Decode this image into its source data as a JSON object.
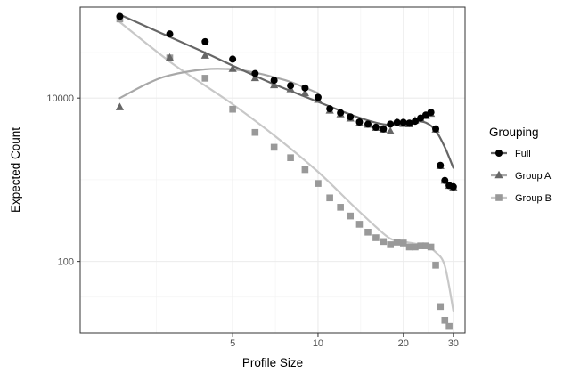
{
  "chart_data": {
    "type": "scatter",
    "title": "",
    "xlabel": "Profile Size",
    "ylabel": "Expected Count",
    "x_scale": "log",
    "y_scale": "log",
    "xlim": [
      1.45,
      33
    ],
    "ylim": [
      13.3,
      130000
    ],
    "x_ticks": [
      5,
      10,
      20,
      30
    ],
    "x_tick_labels": [
      "5",
      "10",
      "20",
      "30"
    ],
    "y_ticks": [
      100,
      10000
    ],
    "y_tick_labels": [
      "100",
      "10000"
    ],
    "grid": true,
    "legend": {
      "title": "Grouping",
      "position": "right",
      "entries": [
        "Full",
        "Group A",
        "Group B"
      ]
    },
    "series": [
      {
        "name": "Full",
        "marker": "circle",
        "color": "#000000",
        "line_color": "#666666",
        "points": [
          [
            2,
            100000
          ],
          [
            3,
            61000
          ],
          [
            4,
            49000
          ],
          [
            5,
            30000
          ],
          [
            6,
            20000
          ],
          [
            7,
            16500
          ],
          [
            8,
            14200
          ],
          [
            9,
            13300
          ],
          [
            10,
            10200
          ],
          [
            11,
            7400
          ],
          [
            12,
            6600
          ],
          [
            13,
            5900
          ],
          [
            14,
            5100
          ],
          [
            15,
            4800
          ],
          [
            16,
            4400
          ],
          [
            17,
            4200
          ],
          [
            18,
            4800
          ],
          [
            19,
            5050
          ],
          [
            20,
            5050
          ],
          [
            21,
            4950
          ],
          [
            22,
            5200
          ],
          [
            23,
            5700
          ],
          [
            24,
            6200
          ],
          [
            25,
            6700
          ],
          [
            26,
            4200
          ],
          [
            27,
            1500
          ],
          [
            28,
            980
          ],
          [
            29,
            850
          ],
          [
            30,
            820
          ]
        ],
        "fit": [
          [
            2,
            105000
          ],
          [
            3,
            56000
          ],
          [
            4,
            36000
          ],
          [
            5,
            25000
          ],
          [
            7,
            14800
          ],
          [
            10,
            9000
          ],
          [
            13,
            6300
          ],
          [
            16,
            5000
          ],
          [
            18,
            4700
          ],
          [
            20,
            4900
          ],
          [
            22,
            5200
          ],
          [
            24,
            5000
          ],
          [
            26,
            4000
          ],
          [
            28,
            2500
          ],
          [
            30,
            1400
          ]
        ]
      },
      {
        "name": "Group A",
        "marker": "triangle",
        "color": "#666666",
        "line_color": "#a8a8a8",
        "points": [
          [
            2,
            7700
          ],
          [
            3,
            31000
          ],
          [
            4,
            33000
          ],
          [
            5,
            22700
          ],
          [
            6,
            17500
          ],
          [
            7,
            14300
          ],
          [
            8,
            12800
          ],
          [
            9,
            11400
          ],
          [
            10,
            9500
          ],
          [
            11,
            7000
          ],
          [
            12,
            6300
          ],
          [
            13,
            5600
          ],
          [
            14,
            4900
          ],
          [
            15,
            4700
          ],
          [
            16,
            4300
          ],
          [
            17,
            4100
          ],
          [
            18,
            3900
          ],
          [
            19,
            4900
          ],
          [
            20,
            4800
          ],
          [
            21,
            4750
          ],
          [
            22,
            5300
          ],
          [
            23,
            5600
          ],
          [
            24,
            6000
          ],
          [
            25,
            6400
          ],
          [
            26,
            4100
          ],
          [
            27,
            1460
          ],
          [
            28,
            970
          ],
          [
            29,
            840
          ],
          [
            30,
            800
          ]
        ],
        "fit": [
          [
            2,
            10000
          ],
          [
            2.5,
            15000
          ],
          [
            3,
            19000
          ],
          [
            4,
            22500
          ],
          [
            5,
            22500
          ],
          [
            6,
            20500
          ],
          [
            7,
            18000
          ],
          [
            8,
            15800
          ],
          [
            10,
            11500
          ]
        ]
      },
      {
        "name": "Group B",
        "marker": "square",
        "color": "#999999",
        "line_color": "#c8c8c8",
        "points": [
          [
            2,
            93000
          ],
          [
            3,
            31000
          ],
          [
            4,
            17500
          ],
          [
            5,
            7300
          ],
          [
            6,
            3800
          ],
          [
            7,
            2500
          ],
          [
            8,
            1860
          ],
          [
            9,
            1330
          ],
          [
            10,
            900
          ],
          [
            11,
            600
          ],
          [
            12,
            460
          ],
          [
            13,
            360
          ],
          [
            14,
            285
          ],
          [
            15,
            228
          ],
          [
            16,
            195
          ],
          [
            17,
            175
          ],
          [
            18,
            160
          ],
          [
            19,
            172
          ],
          [
            20,
            168
          ],
          [
            21,
            150
          ],
          [
            22,
            150
          ],
          [
            23,
            155
          ],
          [
            24,
            155
          ],
          [
            25,
            150
          ],
          [
            26,
            90
          ],
          [
            27,
            28
          ],
          [
            28,
            19
          ],
          [
            29,
            16
          ]
        ],
        "fit": [
          [
            2,
            85000
          ],
          [
            3,
            28000
          ],
          [
            4,
            14200
          ],
          [
            5,
            8400
          ],
          [
            7,
            3500
          ],
          [
            10,
            1250
          ],
          [
            13,
            520
          ],
          [
            16,
            265
          ],
          [
            18,
            190
          ],
          [
            20,
            175
          ],
          [
            22,
            165
          ],
          [
            24,
            155
          ],
          [
            26,
            130
          ],
          [
            28,
            88
          ],
          [
            30,
            25
          ]
        ]
      }
    ]
  }
}
